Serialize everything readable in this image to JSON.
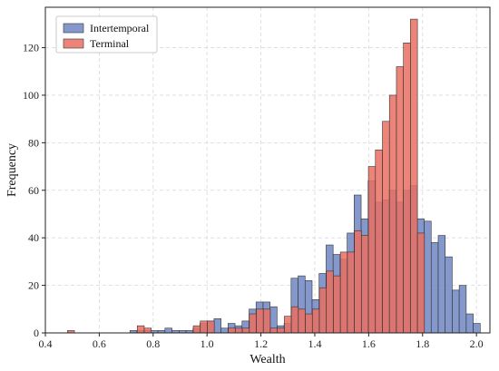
{
  "chart_data": {
    "type": "bar",
    "subtype": "overlaid-histogram",
    "xlabel": "Wealth",
    "ylabel": "Frequency",
    "xlim": [
      0.4,
      2.05
    ],
    "ylim": [
      0,
      137
    ],
    "xticks": [
      0.4,
      0.6,
      0.8,
      1.0,
      1.2,
      1.4,
      1.6,
      1.8,
      2.0
    ],
    "xtick_labels": [
      "0.4",
      "0.6",
      "0.8",
      "1.0",
      "1.2",
      "1.4",
      "1.6",
      "1.8",
      "2.0"
    ],
    "yticks": [
      0,
      20,
      40,
      60,
      80,
      100,
      120
    ],
    "ytick_labels": [
      "0",
      "20",
      "40",
      "60",
      "80",
      "100",
      "120"
    ],
    "grid": true,
    "legend_position": "upper-left",
    "series": [
      {
        "name": "Intertemporal",
        "color": "#6f86c2",
        "bin_width": 0.026,
        "bins": [
          {
            "x": 0.727,
            "y": 1
          },
          {
            "x": 0.753,
            "y": 1
          },
          {
            "x": 0.779,
            "y": 1
          },
          {
            "x": 0.805,
            "y": 1
          },
          {
            "x": 0.831,
            "y": 1
          },
          {
            "x": 0.857,
            "y": 2
          },
          {
            "x": 0.883,
            "y": 1
          },
          {
            "x": 0.909,
            "y": 1
          },
          {
            "x": 0.935,
            "y": 1
          },
          {
            "x": 0.961,
            "y": 2
          },
          {
            "x": 0.987,
            "y": 4
          },
          {
            "x": 1.013,
            "y": 5
          },
          {
            "x": 1.039,
            "y": 6
          },
          {
            "x": 1.065,
            "y": 2
          },
          {
            "x": 1.091,
            "y": 4
          },
          {
            "x": 1.117,
            "y": 3
          },
          {
            "x": 1.143,
            "y": 5
          },
          {
            "x": 1.169,
            "y": 10
          },
          {
            "x": 1.195,
            "y": 13
          },
          {
            "x": 1.221,
            "y": 13
          },
          {
            "x": 1.247,
            "y": 11
          },
          {
            "x": 1.273,
            "y": 3
          },
          {
            "x": 1.299,
            "y": 4
          },
          {
            "x": 1.325,
            "y": 23
          },
          {
            "x": 1.351,
            "y": 24
          },
          {
            "x": 1.377,
            "y": 22
          },
          {
            "x": 1.403,
            "y": 14
          },
          {
            "x": 1.429,
            "y": 25
          },
          {
            "x": 1.455,
            "y": 37
          },
          {
            "x": 1.481,
            "y": 33
          },
          {
            "x": 1.507,
            "y": 31
          },
          {
            "x": 1.533,
            "y": 42
          },
          {
            "x": 1.559,
            "y": 58
          },
          {
            "x": 1.585,
            "y": 48
          },
          {
            "x": 1.611,
            "y": 64
          },
          {
            "x": 1.637,
            "y": 55
          },
          {
            "x": 1.663,
            "y": 56
          },
          {
            "x": 1.689,
            "y": 60
          },
          {
            "x": 1.715,
            "y": 55
          },
          {
            "x": 1.741,
            "y": 60
          },
          {
            "x": 1.767,
            "y": 62
          },
          {
            "x": 1.793,
            "y": 48
          },
          {
            "x": 1.819,
            "y": 47
          },
          {
            "x": 1.845,
            "y": 38
          },
          {
            "x": 1.871,
            "y": 41
          },
          {
            "x": 1.897,
            "y": 32
          },
          {
            "x": 1.923,
            "y": 18
          },
          {
            "x": 1.949,
            "y": 20
          },
          {
            "x": 1.975,
            "y": 8
          },
          {
            "x": 2.001,
            "y": 4
          }
        ]
      },
      {
        "name": "Terminal",
        "color": "#ea6f63",
        "bin_width": 0.026,
        "bins": [
          {
            "x": 0.495,
            "y": 1
          },
          {
            "x": 0.754,
            "y": 3
          },
          {
            "x": 0.78,
            "y": 2
          },
          {
            "x": 0.962,
            "y": 3
          },
          {
            "x": 0.988,
            "y": 5
          },
          {
            "x": 1.014,
            "y": 5
          },
          {
            "x": 1.092,
            "y": 2
          },
          {
            "x": 1.118,
            "y": 2
          },
          {
            "x": 1.144,
            "y": 2
          },
          {
            "x": 1.17,
            "y": 8
          },
          {
            "x": 1.196,
            "y": 10
          },
          {
            "x": 1.222,
            "y": 10
          },
          {
            "x": 1.248,
            "y": 2
          },
          {
            "x": 1.274,
            "y": 2
          },
          {
            "x": 1.3,
            "y": 7
          },
          {
            "x": 1.326,
            "y": 11
          },
          {
            "x": 1.352,
            "y": 10
          },
          {
            "x": 1.378,
            "y": 8
          },
          {
            "x": 1.404,
            "y": 10
          },
          {
            "x": 1.43,
            "y": 19
          },
          {
            "x": 1.456,
            "y": 26
          },
          {
            "x": 1.482,
            "y": 24
          },
          {
            "x": 1.508,
            "y": 34
          },
          {
            "x": 1.534,
            "y": 34
          },
          {
            "x": 1.56,
            "y": 43
          },
          {
            "x": 1.586,
            "y": 41
          },
          {
            "x": 1.612,
            "y": 70
          },
          {
            "x": 1.638,
            "y": 77
          },
          {
            "x": 1.664,
            "y": 89
          },
          {
            "x": 1.69,
            "y": 100
          },
          {
            "x": 1.716,
            "y": 112
          },
          {
            "x": 1.742,
            "y": 122
          },
          {
            "x": 1.768,
            "y": 132
          },
          {
            "x": 1.794,
            "y": 42
          }
        ]
      }
    ]
  }
}
